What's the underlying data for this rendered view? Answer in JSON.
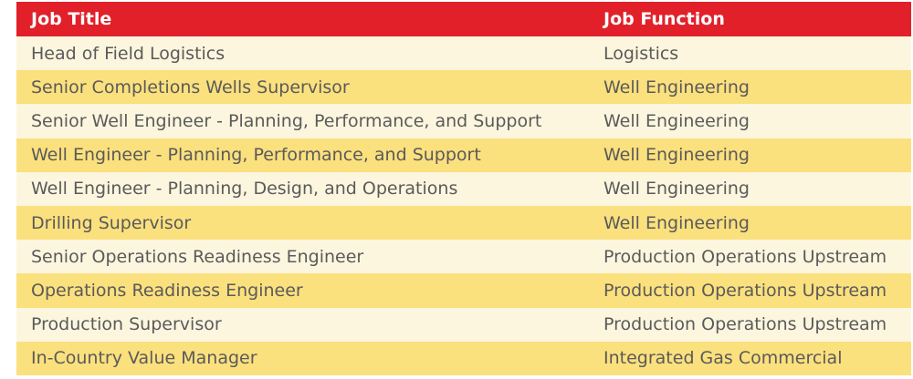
{
  "table": {
    "header": [
      "Job Title",
      "Job Function"
    ],
    "rows": [
      [
        "Head of Field Logistics",
        "Logistics"
      ],
      [
        "Senior Completions Wells Supervisor",
        "Well Engineering"
      ],
      [
        "Senior Well Engineer - Planning, Performance, and Support",
        "Well Engineering"
      ],
      [
        "Well Engineer - Planning, Performance, and Support",
        "Well Engineering"
      ],
      [
        "Well Engineer - Planning, Design, and Operations",
        "Well Engineering"
      ],
      [
        "Drilling Supervisor",
        "Well Engineering"
      ],
      [
        "Senior Operations Readiness Engineer",
        "Production Operations Upstream"
      ],
      [
        "Operations Readiness Engineer",
        "Production Operations Upstream"
      ],
      [
        "Production Supervisor",
        "Production Operations Upstream"
      ],
      [
        "In-Country Value Manager",
        "Integrated Gas Commercial"
      ]
    ]
  }
}
